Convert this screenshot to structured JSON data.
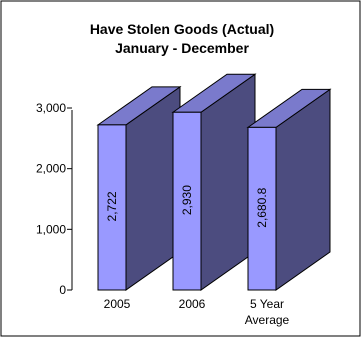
{
  "chart_data": {
    "type": "bar",
    "title": "Have Stolen Goods (Actual)",
    "subtitle": "January - December",
    "categories": [
      "2005",
      "2006",
      "5 Year\nAverage"
    ],
    "values": [
      2722,
      2930,
      2680.8
    ],
    "value_labels": [
      "2,722",
      "2,930",
      "2,680.8"
    ],
    "yticks": [
      "0",
      "1,000",
      "2,000",
      "3,000"
    ],
    "ytick_values": [
      0,
      1000,
      2000,
      3000
    ],
    "ylim": [
      0,
      3000
    ],
    "xlabel": "",
    "ylabel": "",
    "grid": false,
    "legend": "none",
    "style": "3d-column",
    "colors": {
      "front": "#9999ff",
      "side": "#4c4c7f",
      "top": "#7a7acc",
      "edge": "#000000",
      "frame": "#000000"
    }
  }
}
